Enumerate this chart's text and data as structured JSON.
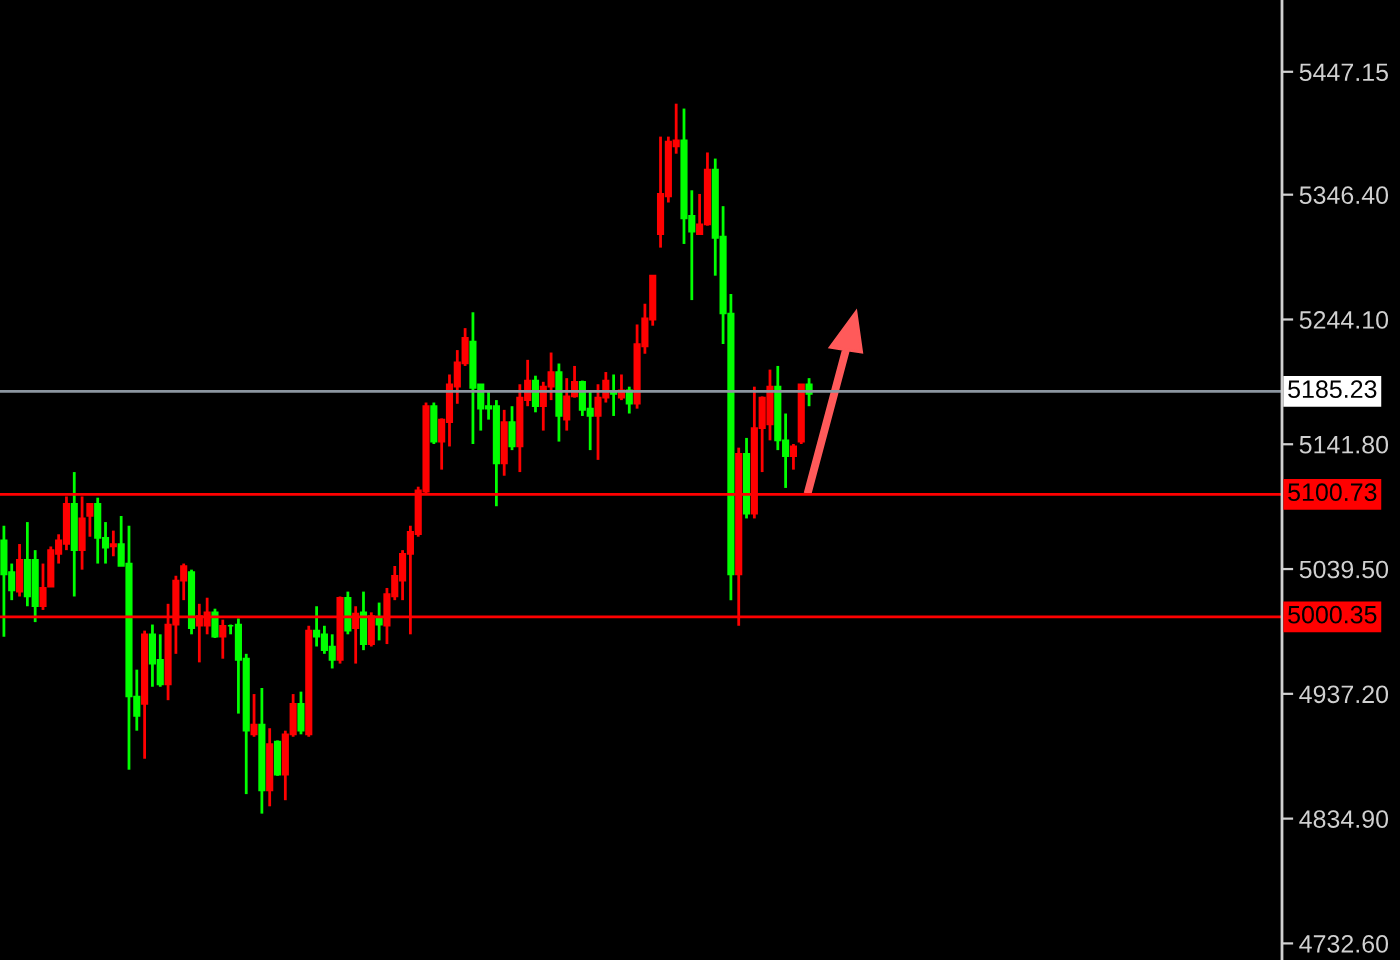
{
  "chart_data": {
    "type": "candlestick",
    "categories": [
      null,
      null,
      null,
      null,
      null,
      null,
      null,
      null,
      null,
      null,
      null,
      null,
      null,
      null,
      null,
      null,
      null,
      null,
      null,
      null,
      null,
      null,
      null,
      null,
      null,
      null,
      null,
      null,
      null,
      null,
      null,
      null,
      null,
      null,
      null,
      null,
      null,
      null,
      null,
      null,
      null,
      null,
      null,
      null,
      null,
      null,
      null,
      null,
      null,
      null,
      null,
      null,
      null,
      null,
      null,
      null,
      null,
      null,
      null,
      null,
      null,
      null,
      null,
      null,
      null,
      null,
      null,
      null,
      null,
      null,
      null,
      null,
      null,
      null,
      null,
      null,
      null,
      null,
      null,
      null,
      null,
      null,
      null,
      null,
      null,
      null,
      null,
      null,
      null,
      null,
      null,
      null,
      null,
      null,
      null,
      null,
      null,
      null,
      null,
      null,
      null,
      null,
      null,
      null,
      null,
      null,
      null,
      null,
      null,
      null,
      null,
      null,
      null,
      null,
      null,
      null,
      null,
      null,
      null,
      null,
      null,
      null,
      null,
      null,
      null,
      null,
      null,
      null,
      null,
      null,
      null,
      null,
      null,
      null,
      null,
      null,
      null,
      null,
      null,
      null,
      null,
      null,
      null,
      null,
      null,
      null,
      null,
      null,
      null,
      null,
      null,
      null,
      null,
      null,
      null,
      null,
      null,
      null,
      null,
      null,
      null,
      null,
      null,
      null
    ],
    "ohlc": [
      [
        5063,
        5075,
        4984,
        5035
      ],
      [
        5037,
        5044,
        5014,
        5022
      ],
      [
        5021,
        5060,
        5017,
        5047
      ],
      [
        5047,
        5078,
        5009,
        5017
      ],
      [
        5047,
        5055,
        4996,
        5009
      ],
      [
        5009,
        5044,
        5006,
        5024
      ],
      [
        5025,
        5058,
        5025,
        5055
      ],
      [
        5052,
        5068,
        5044,
        5063
      ],
      [
        5060,
        5099,
        5055,
        5093
      ],
      [
        5093,
        5119,
        5017,
        5055
      ],
      [
        5055,
        5099,
        5039,
        5081
      ],
      [
        5083,
        5093,
        5066,
        5093
      ],
      [
        5093,
        5098,
        5044,
        5065
      ],
      [
        5065,
        5078,
        5044,
        5057
      ],
      [
        5058,
        5071,
        5050,
        5060
      ],
      [
        5060,
        5083,
        5042,
        5042
      ],
      [
        5044,
        5075,
        4875,
        4935
      ],
      [
        4935,
        4957,
        4907,
        4919
      ],
      [
        4929,
        4989,
        4884,
        4986
      ],
      [
        4986,
        4994,
        4943,
        4962
      ],
      [
        4965,
        4986,
        4943,
        4945
      ],
      [
        4945,
        5011,
        4932,
        4994
      ],
      [
        4994,
        5034,
        4970,
        5030
      ],
      [
        5030,
        5044,
        5014,
        5042
      ],
      [
        5037,
        5039,
        4986,
        4991
      ],
      [
        4993,
        5011,
        4963,
        5001
      ],
      [
        4993,
        5016,
        4986,
        5004
      ],
      [
        5004,
        5007,
        4983,
        4984
      ],
      [
        4984,
        4998,
        4966,
        4993
      ],
      [
        4993,
        4994,
        4986,
        4993
      ],
      [
        4994,
        4999,
        4921,
        4965
      ],
      [
        4966,
        4970,
        4855,
        4907
      ],
      [
        4904,
        4937,
        4902,
        4912
      ],
      [
        4912,
        4942,
        4839,
        4858
      ],
      [
        4858,
        4909,
        4845,
        4896
      ],
      [
        4898,
        4899,
        4870,
        4871
      ],
      [
        4871,
        4907,
        4850,
        4904
      ],
      [
        4904,
        4937,
        4902,
        4929
      ],
      [
        4929,
        4939,
        4904,
        4907
      ],
      [
        4904,
        4993,
        4902,
        4989
      ],
      [
        4989,
        5009,
        4976,
        4984
      ],
      [
        4986,
        4993,
        4970,
        4973
      ],
      [
        4976,
        4986,
        4958,
        4965
      ],
      [
        4965,
        5017,
        4962,
        5016
      ],
      [
        5016,
        5021,
        4986,
        4989
      ],
      [
        4991,
        5009,
        4962,
        5003
      ],
      [
        5004,
        5021,
        4973,
        4978
      ],
      [
        4978,
        5004,
        4976,
        5001
      ],
      [
        4999,
        5012,
        4981,
        4994
      ],
      [
        4993,
        5024,
        4978,
        5019
      ],
      [
        5017,
        5042,
        5014,
        5034
      ],
      [
        5030,
        5055,
        5014,
        5052
      ],
      [
        5052,
        5075,
        4986,
        5070
      ],
      [
        5068,
        5107,
        5066,
        5104
      ],
      [
        5103,
        5176,
        5101,
        5173
      ],
      [
        5173,
        5176,
        5142,
        5144
      ],
      [
        5144,
        5163,
        5121,
        5162
      ],
      [
        5160,
        5199,
        5140,
        5191
      ],
      [
        5189,
        5219,
        5175,
        5209
      ],
      [
        5208,
        5237,
        5206,
        5229
      ],
      [
        5226,
        5250,
        5142,
        5188
      ],
      [
        5191,
        5191,
        5153,
        5171
      ],
      [
        5173,
        5185,
        5162,
        5171
      ],
      [
        5173,
        5178,
        5091,
        5126
      ],
      [
        5126,
        5170,
        5116,
        5160
      ],
      [
        5160,
        5173,
        5137,
        5140
      ],
      [
        5140,
        5191,
        5119,
        5180
      ],
      [
        5178,
        5211,
        5173,
        5194
      ],
      [
        5194,
        5198,
        5168,
        5173
      ],
      [
        5173,
        5193,
        5153,
        5189
      ],
      [
        5189,
        5217,
        5178,
        5201
      ],
      [
        5201,
        5208,
        5144,
        5165
      ],
      [
        5162,
        5196,
        5153,
        5181
      ],
      [
        5181,
        5206,
        5180,
        5193
      ],
      [
        5193,
        5194,
        5165,
        5170
      ],
      [
        5171,
        5186,
        5137,
        5165
      ],
      [
        5165,
        5191,
        5129,
        5180
      ],
      [
        5180,
        5201,
        5176,
        5194
      ],
      [
        5185,
        5199,
        5165,
        5183
      ],
      [
        5180,
        5199,
        5178,
        5186
      ],
      [
        5186,
        5189,
        5167,
        5175
      ],
      [
        5175,
        5240,
        5171,
        5224
      ],
      [
        5222,
        5257,
        5216,
        5245
      ],
      [
        5244,
        5280,
        5239,
        5280
      ],
      [
        5314,
        5394,
        5303,
        5347
      ],
      [
        5345,
        5394,
        5340,
        5390
      ],
      [
        5386,
        5421,
        5380,
        5391
      ],
      [
        5391,
        5417,
        5306,
        5327
      ],
      [
        5329,
        5350,
        5260,
        5316
      ],
      [
        5314,
        5347,
        5314,
        5322
      ],
      [
        5322,
        5381,
        5321,
        5367
      ],
      [
        5367,
        5376,
        5280,
        5311
      ],
      [
        5312,
        5337,
        5224,
        5249
      ],
      [
        5249,
        5265,
        5014,
        5035
      ],
      [
        5035,
        5139,
        4993,
        5134
      ],
      [
        5134,
        5147,
        5081,
        5085
      ],
      [
        5085,
        5189,
        5081,
        5155
      ],
      [
        5155,
        5181,
        5119,
        5180
      ],
      [
        5158,
        5203,
        5145,
        5189
      ],
      [
        5189,
        5206,
        5137,
        5145
      ],
      [
        5145,
        5167,
        5106,
        5132
      ],
      [
        5132,
        5142,
        5121,
        5140
      ],
      [
        5144,
        5191,
        5142,
        5191
      ],
      [
        5191,
        5196,
        5173,
        5183
      ],
      null,
      null,
      null,
      null,
      null,
      null,
      null,
      null,
      null,
      null,
      null,
      null,
      null,
      null,
      null,
      null,
      null,
      null,
      null,
      null,
      null,
      null,
      null,
      null,
      null,
      null,
      null,
      null,
      null,
      null,
      null,
      null,
      null,
      null,
      null,
      null,
      null,
      null,
      null,
      null,
      null,
      null,
      null,
      null,
      null,
      null,
      null,
      null,
      null,
      null,
      null,
      null,
      null,
      null,
      null,
      null,
      null,
      null,
      null,
      null
    ],
    "colors": [
      "#00ff00",
      "#00ff00",
      "#ff0000",
      "#00ff00",
      "#00ff00",
      "#ff0000",
      "#ff0000",
      "#ff0000",
      "#ff0000",
      "#00ff00",
      "#ff0000",
      "#ff0000",
      "#00ff00",
      "#00ff00",
      "#ff0000",
      "#00ff00",
      "#00ff00",
      "#00ff00",
      "#ff0000",
      "#00ff00",
      "#00ff00",
      "#ff0000",
      "#ff0000",
      "#ff0000",
      "#00ff00",
      "#ff0000",
      "#ff0000",
      "#00ff00",
      "#ff0000",
      "#00ff00",
      "#00ff00",
      "#00ff00",
      "#ff0000",
      "#00ff00",
      "#ff0000",
      "#00ff00",
      "#ff0000",
      "#ff0000",
      "#00ff00",
      "#ff0000",
      "#00ff00",
      "#00ff00",
      "#00ff00",
      "#ff0000",
      "#00ff00",
      "#ff0000",
      "#00ff00",
      "#ff0000",
      "#00ff00",
      "#ff0000",
      "#ff0000",
      "#ff0000",
      "#ff0000",
      "#ff0000",
      "#ff0000",
      "#00ff00",
      "#ff0000",
      "#ff0000",
      "#ff0000",
      "#ff0000",
      "#00ff00",
      "#00ff00",
      "#00ff00",
      "#00ff00",
      "#ff0000",
      "#00ff00",
      "#ff0000",
      "#ff0000",
      "#00ff00",
      "#ff0000",
      "#ff0000",
      "#00ff00",
      "#ff0000",
      "#ff0000",
      "#00ff00",
      "#00ff00",
      "#ff0000",
      "#ff0000",
      "#00ff00",
      "#ff0000",
      "#00ff00",
      "#ff0000",
      "#ff0000",
      "#ff0000",
      "#ff0000",
      "#ff0000",
      "#ff0000",
      "#00ff00",
      "#00ff00",
      "#ff0000",
      "#ff0000",
      "#00ff00",
      "#00ff00",
      "#00ff00",
      "#ff0000",
      "#00ff00",
      "#ff0000",
      "#ff0000",
      "#ff0000",
      "#00ff00",
      "#00ff00",
      "#ff0000",
      "#ff0000",
      "#00ff00",
      null,
      null,
      null,
      null,
      null,
      null,
      null,
      null,
      null,
      null,
      null,
      null,
      null,
      null,
      null,
      null,
      null,
      null,
      null,
      null,
      null,
      null,
      null,
      null,
      null,
      null,
      null,
      null,
      null,
      null,
      null,
      null,
      null,
      null,
      null,
      null,
      null,
      null,
      null,
      null,
      null,
      null,
      null,
      null,
      null,
      null,
      null,
      null,
      null,
      null,
      null,
      null,
      null,
      null,
      null,
      null,
      null,
      null,
      null,
      null
    ],
    "ylim": [
      4719,
      5506
    ],
    "yticks": [
      5447.15,
      {
        "value": 5346.4,
        "label": "5346.40"
      },
      {
        "value": 5244.1,
        "label": "5244.10"
      },
      {
        "value": 5141.8,
        "label": "5141.80"
      },
      {
        "value": 5039.5,
        "label": "5039.50"
      },
      {
        "value": 4937.2,
        "label": "4937.20"
      },
      {
        "value": 4834.9,
        "label": "4834.90"
      },
      {
        "value": 4732.6,
        "label": "4732.60"
      }
    ],
    "ref_lines": [
      {
        "axis": "y",
        "value": 5185.23,
        "label": "5185.23",
        "color": "#8c96a0"
      },
      {
        "axis": "y",
        "value": 5100.73,
        "label": "5100.73",
        "color": "#ff0000"
      },
      {
        "axis": "y",
        "value": 5000.35,
        "label": "5000.35",
        "color": "#ff0000"
      }
    ],
    "grid": false,
    "tick_labels": "y"
  }
}
